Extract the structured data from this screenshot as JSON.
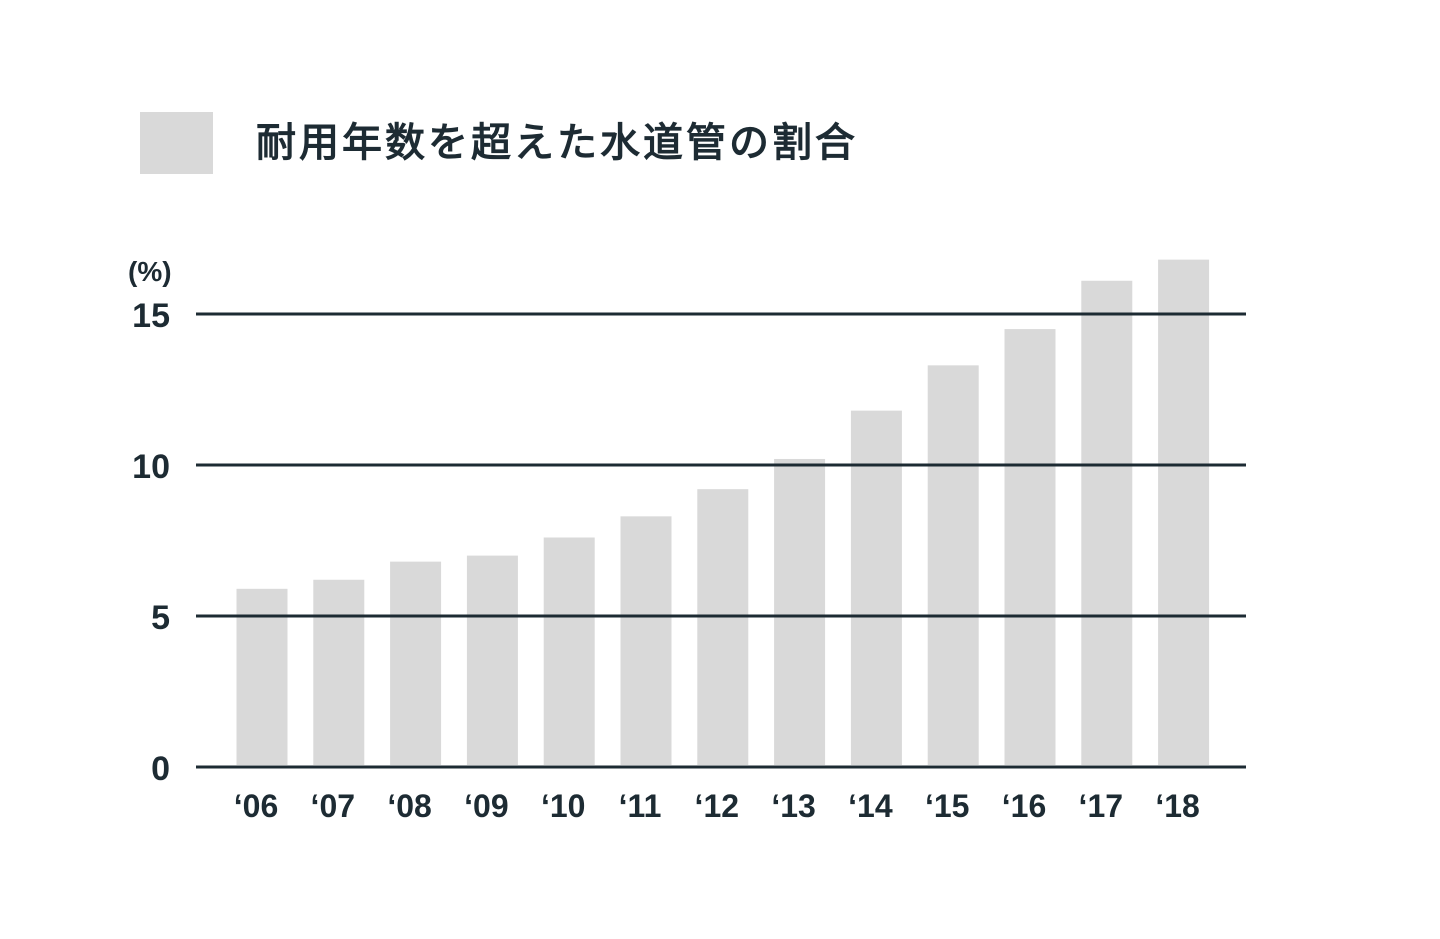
{
  "colors": {
    "text": "#1d2b33",
    "bar": "#d9d9d9",
    "grid": "#1d2b33",
    "background": "#ffffff"
  },
  "legend": {
    "label": "耐用年数を超えた水道管の割合"
  },
  "chart_data": {
    "type": "bar",
    "title": "",
    "xlabel": "",
    "ylabel": "",
    "y_unit": "(%)",
    "categories": [
      "‘06",
      "‘07",
      "‘08",
      "‘09",
      "‘10",
      "‘11",
      "‘12",
      "‘13",
      "‘14",
      "‘15",
      "‘16",
      "‘17",
      "‘18"
    ],
    "series": [
      {
        "name": "耐用年数を超えた水道管の割合",
        "values": [
          5.9,
          6.2,
          6.8,
          7.0,
          7.6,
          8.3,
          9.2,
          10.2,
          11.8,
          13.3,
          14.5,
          16.1,
          16.8
        ]
      }
    ],
    "yticks": [
      0,
      5,
      10,
      15
    ],
    "ylim": [
      0,
      17.5
    ],
    "grid": true,
    "legend_position": "top-left"
  }
}
